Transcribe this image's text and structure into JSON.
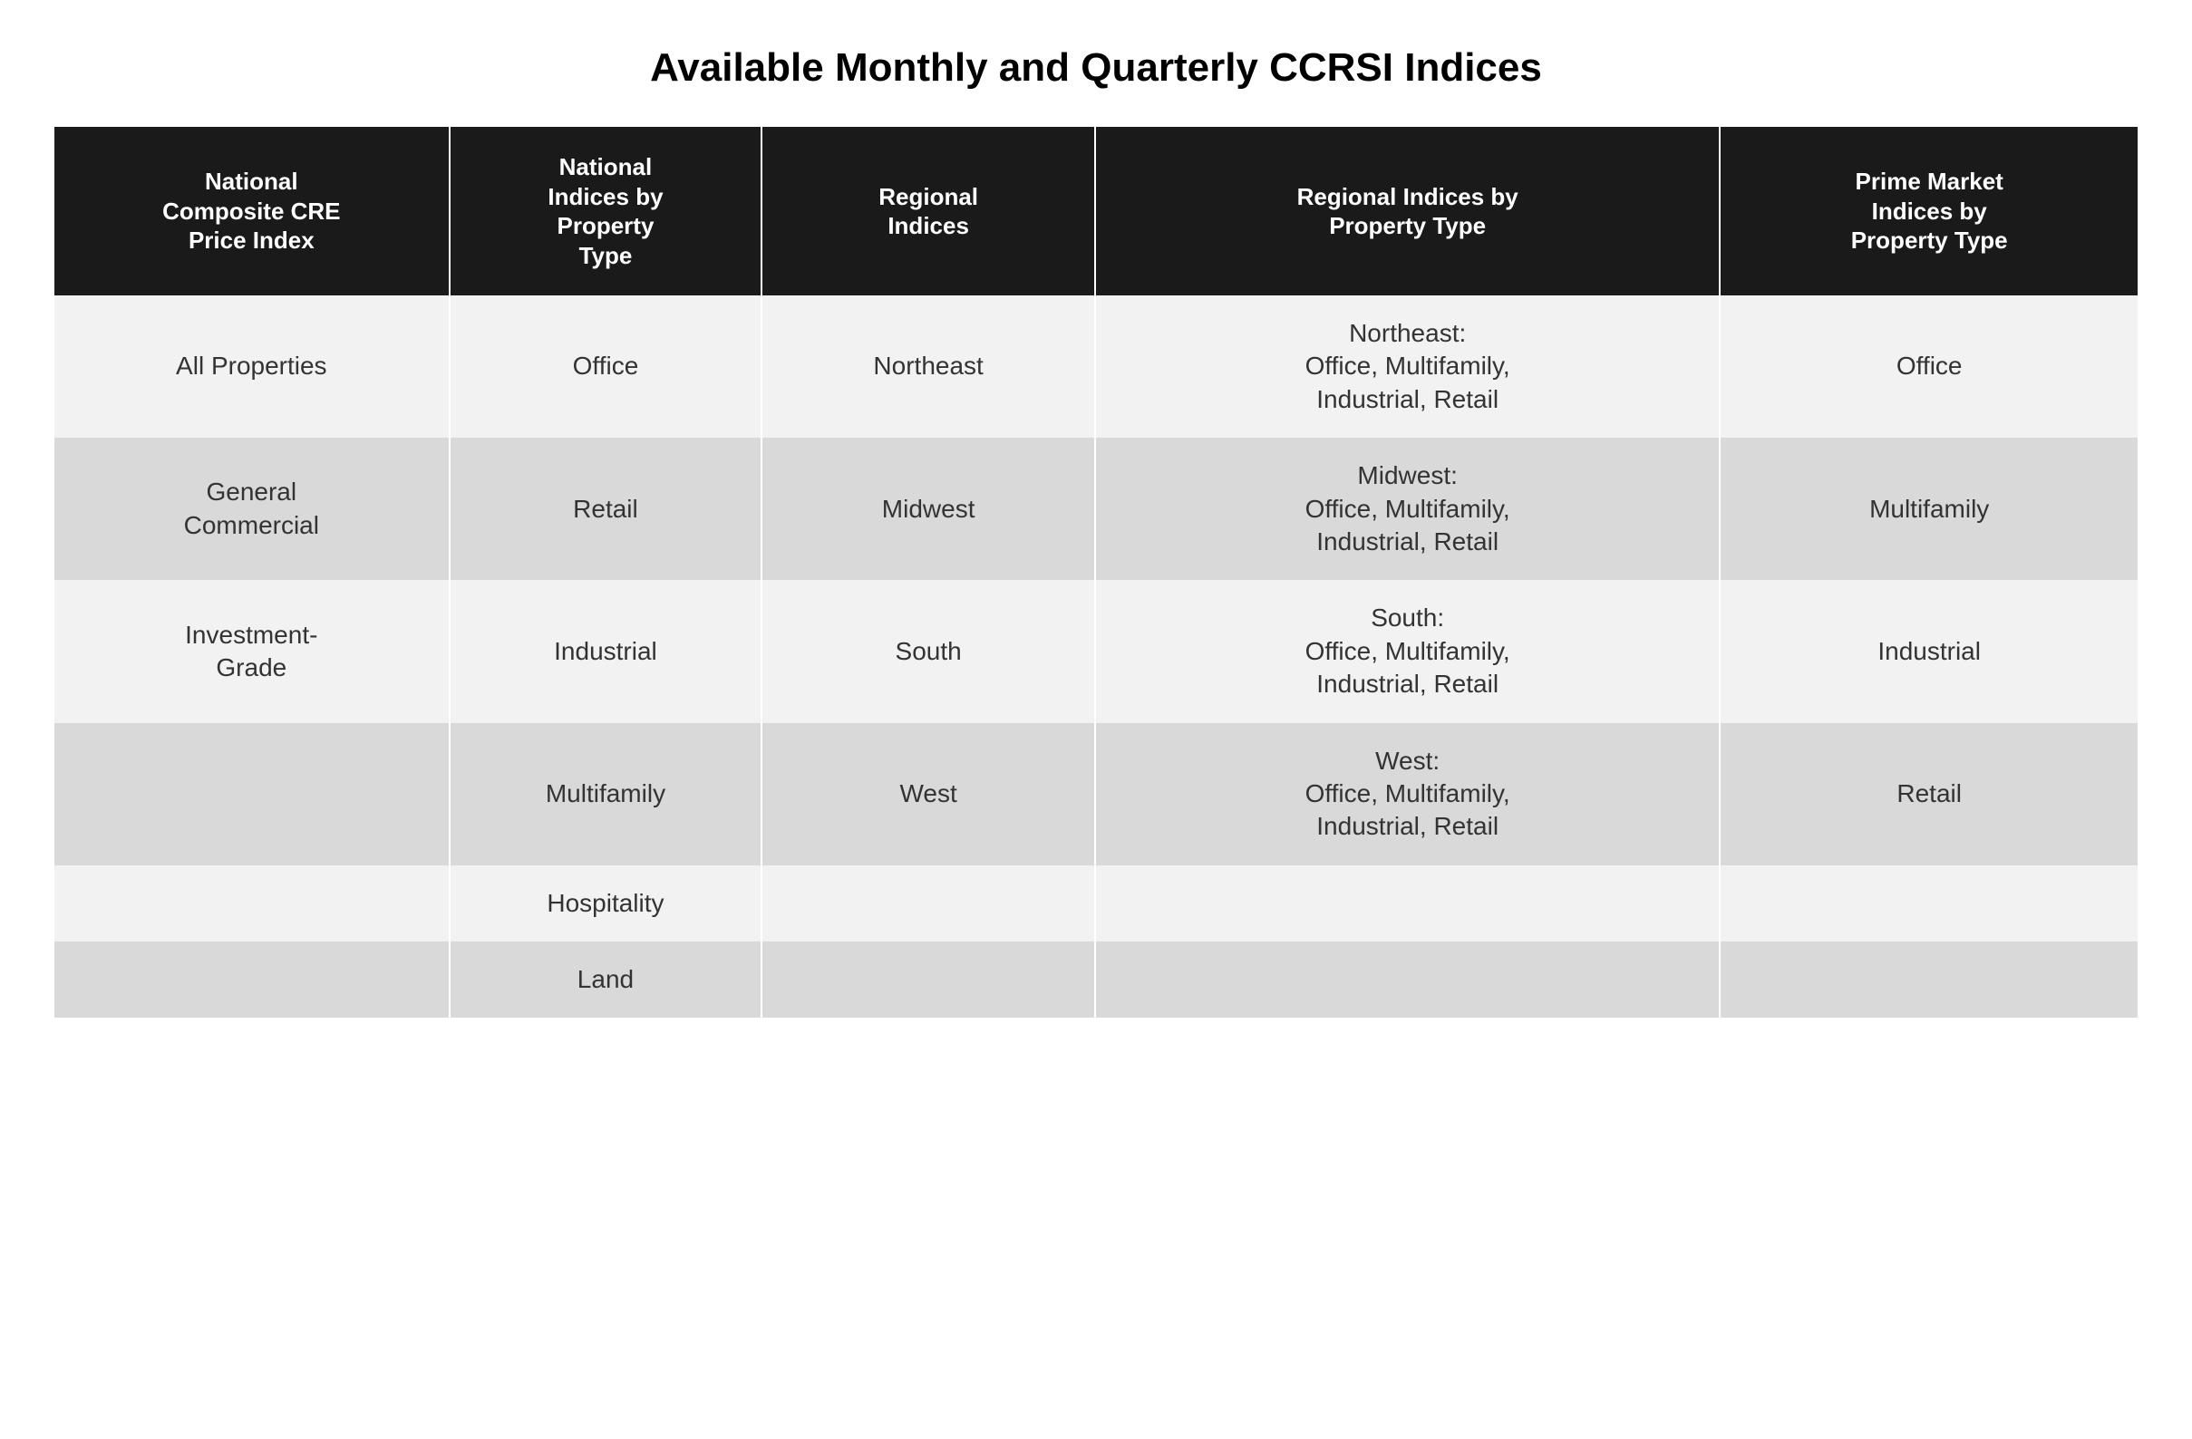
{
  "title": "Available Monthly and Quarterly CCRSI Indices",
  "table": {
    "type": "table",
    "header_bg": "#1a1a1a",
    "header_fg": "#ffffff",
    "row_odd_bg": "#f2f2f2",
    "row_even_bg": "#d9d9d9",
    "cell_fg": "#333333",
    "header_fontsize": 26,
    "cell_fontsize": 28,
    "columns": [
      {
        "label": "National\nComposite CRE\nPrice Index",
        "width_pct": 19
      },
      {
        "label": "National\nIndices by\nProperty\nType",
        "width_pct": 15
      },
      {
        "label": "Regional\nIndices",
        "width_pct": 16
      },
      {
        "label": "Regional Indices by\nProperty Type",
        "width_pct": 30
      },
      {
        "label": "Prime Market\nIndices by\nProperty Type",
        "width_pct": 20
      }
    ],
    "rows": [
      {
        "c0": "All Properties",
        "c1": "Office",
        "c2": "Northeast",
        "c3": "Northeast:\nOffice, Multifamily,\nIndustrial, Retail",
        "c4": "Office"
      },
      {
        "c0": "General\nCommercial",
        "c1": "Retail",
        "c2": "Midwest",
        "c3": "Midwest:\nOffice, Multifamily,\nIndustrial, Retail",
        "c4": "Multifamily"
      },
      {
        "c0": "Investment-\nGrade",
        "c1": "Industrial",
        "c2": "South",
        "c3": "South:\nOffice, Multifamily,\nIndustrial, Retail",
        "c4": "Industrial"
      },
      {
        "c0": "",
        "c1": "Multifamily",
        "c2": "West",
        "c3": "West:\nOffice, Multifamily,\nIndustrial, Retail",
        "c4": "Retail"
      },
      {
        "c0": "",
        "c1": "Hospitality",
        "c2": "",
        "c3": "",
        "c4": ""
      },
      {
        "c0": "",
        "c1": "Land",
        "c2": "",
        "c3": "",
        "c4": ""
      }
    ]
  }
}
